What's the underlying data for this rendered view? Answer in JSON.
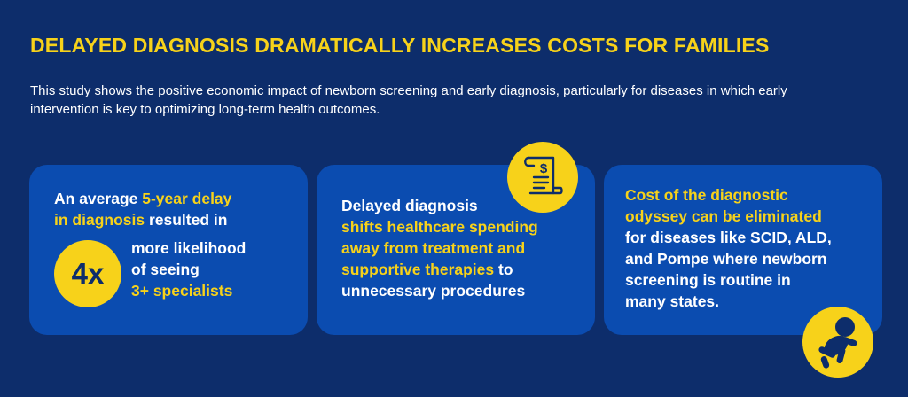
{
  "header": {
    "title": "DELAYED DIAGNOSIS DRAMATICALLY INCREASES COSTS FOR FAMILIES",
    "intro": "This study shows the positive economic impact of newborn screening and early diagnosis, particularly for diseases in which early intervention is key to optimizing long-term health outcomes."
  },
  "cards": [
    {
      "line1a": "An average ",
      "line1b": "5-year delay",
      "line2a": "in diagnosis",
      "line2b": " resulted in",
      "badge": "4x",
      "line3": "more likelihood",
      "line4": "of seeing",
      "line5": "3+ specialists"
    },
    {
      "line1": "Delayed diagnosis",
      "line2": "shifts healthcare spending",
      "line3": "away from treatment and",
      "line4a": "supportive therapies",
      "line4b": " to",
      "line5": "unnecessary procedures"
    },
    {
      "line1": "Cost of the diagnostic",
      "line2": "odyssey can be eliminated",
      "line3": "for diseases like SCID, ALD,",
      "line4": "and Pompe where newborn",
      "line5": "screening is routine in",
      "line6": "many states."
    }
  ],
  "icons": {
    "receipt": "receipt-dollar-icon",
    "baby": "crawling-baby-icon"
  },
  "colors": {
    "background": "#0d2d6b",
    "card": "#0b4cb0",
    "accent": "#f7d21a",
    "text": "#ffffff"
  }
}
